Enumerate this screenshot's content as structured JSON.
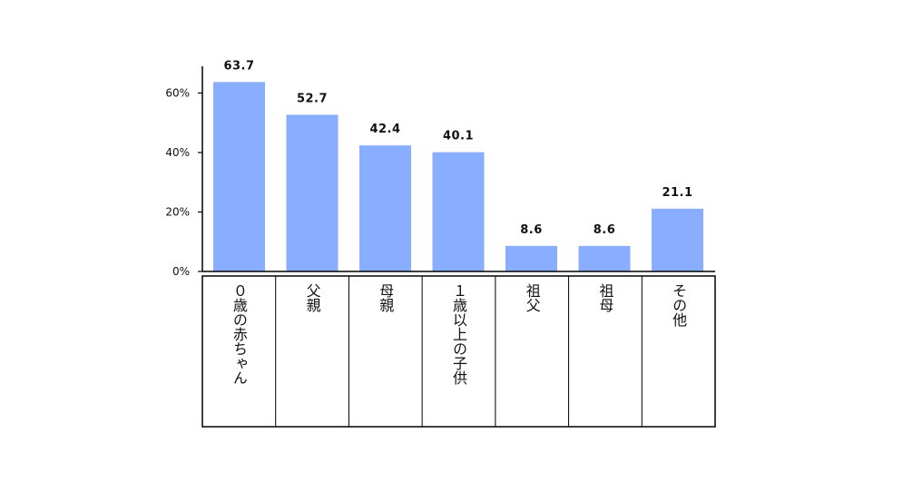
{
  "chart_data": {
    "type": "bar",
    "categories": [
      "０歳の赤ちゃん",
      "父親",
      "母親",
      "１歳以上の子供",
      "祖父",
      "祖母",
      "その他"
    ],
    "values": [
      63.7,
      52.7,
      42.4,
      40.1,
      8.6,
      8.6,
      21.1
    ],
    "data_labels": [
      "63.7",
      "52.7",
      "42.4",
      "40.1",
      "8.6",
      "8.6",
      "21.1"
    ],
    "y_ticks": [
      {
        "value": 0,
        "label": "0%"
      },
      {
        "value": 20,
        "label": "20%"
      },
      {
        "value": 40,
        "label": "40%"
      },
      {
        "value": 60,
        "label": "60%"
      }
    ],
    "ylim": [
      0,
      69
    ],
    "grid": false,
    "legend": "none",
    "bar_color": "#8aaeff",
    "category_labels_orientation": "vertical",
    "category_table": true
  }
}
